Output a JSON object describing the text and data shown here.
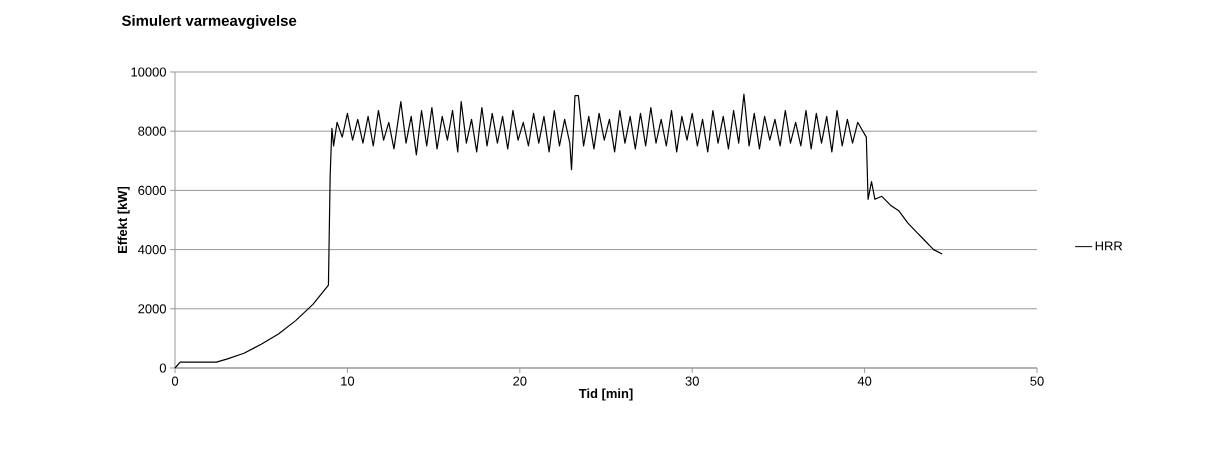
{
  "chart_data": {
    "type": "line",
    "title": "Simulert varmeavgivelse",
    "xlabel": "Tid [min]",
    "ylabel": "Effekt [kW]",
    "x": [
      0,
      0.3,
      2.4,
      3,
      4,
      5,
      6,
      7,
      8,
      8.9,
      9.0,
      9.1,
      9.2,
      9.4,
      9.7,
      10.0,
      10.3,
      10.6,
      10.9,
      11.2,
      11.5,
      11.8,
      12.1,
      12.4,
      12.7,
      13.0,
      13.1,
      13.4,
      13.7,
      14.0,
      14.3,
      14.6,
      14.9,
      15.2,
      15.5,
      15.8,
      16.1,
      16.4,
      16.6,
      16.9,
      17.2,
      17.5,
      17.8,
      18.1,
      18.4,
      18.7,
      19.0,
      19.3,
      19.6,
      19.9,
      20.2,
      20.5,
      20.8,
      21.1,
      21.4,
      21.7,
      22.0,
      22.3,
      22.6,
      22.9,
      23.0,
      23.2,
      23.4,
      23.7,
      24.0,
      24.3,
      24.6,
      24.9,
      25.2,
      25.5,
      25.8,
      26.1,
      26.4,
      26.7,
      27.0,
      27.3,
      27.6,
      27.9,
      28.2,
      28.5,
      28.8,
      29.1,
      29.4,
      29.7,
      30.0,
      30.3,
      30.6,
      30.9,
      31.2,
      31.5,
      31.8,
      32.1,
      32.4,
      32.7,
      33.0,
      33.3,
      33.6,
      33.9,
      34.2,
      34.5,
      34.8,
      35.1,
      35.4,
      35.7,
      36.0,
      36.3,
      36.6,
      36.9,
      37.2,
      37.5,
      37.8,
      38.1,
      38.4,
      38.7,
      39.0,
      39.3,
      39.6,
      39.9,
      40.1,
      40.2,
      40.4,
      40.6,
      41.0,
      41.5,
      42.0,
      42.5,
      43.0,
      43.5,
      44.0,
      44.5
    ],
    "series": [
      {
        "name": "HRR",
        "color": "#000000",
        "values": [
          0,
          200,
          200,
          300,
          500,
          800,
          1150,
          1600,
          2150,
          2800,
          6500,
          8100,
          7500,
          8300,
          7800,
          8600,
          7700,
          8400,
          7600,
          8500,
          7500,
          8700,
          7700,
          8300,
          7400,
          8600,
          9000,
          7600,
          8500,
          7200,
          8700,
          7500,
          8800,
          7400,
          8500,
          7700,
          8700,
          7300,
          9000,
          7600,
          8400,
          7300,
          8800,
          7500,
          8600,
          7600,
          8500,
          7400,
          8700,
          7700,
          8300,
          7500,
          8600,
          7600,
          8500,
          7300,
          8700,
          7500,
          8400,
          7600,
          6700,
          9200,
          9200,
          7500,
          8500,
          7400,
          8600,
          7700,
          8400,
          7300,
          8700,
          7600,
          8500,
          7400,
          8600,
          7500,
          8800,
          7600,
          8400,
          7500,
          8700,
          7300,
          8500,
          7700,
          8600,
          7500,
          8400,
          7300,
          8700,
          7600,
          8500,
          7400,
          8700,
          7600,
          9250,
          7500,
          8600,
          7400,
          8500,
          7700,
          8400,
          7500,
          8700,
          7600,
          8300,
          7500,
          8700,
          7400,
          8600,
          7600,
          8500,
          7300,
          8700,
          7500,
          8400,
          7600,
          8300,
          8000,
          7800,
          5700,
          6300,
          5700,
          5800,
          5500,
          5300,
          4900,
          4600,
          4300,
          4000,
          3850
        ]
      }
    ],
    "xlim": [
      0,
      50
    ],
    "ylim": [
      0,
      10000
    ],
    "xticks": [
      0,
      10,
      20,
      30,
      40,
      50
    ],
    "yticks": [
      0,
      2000,
      4000,
      6000,
      8000,
      10000
    ],
    "grid": "y",
    "legend": "right",
    "line_style": "solid"
  }
}
